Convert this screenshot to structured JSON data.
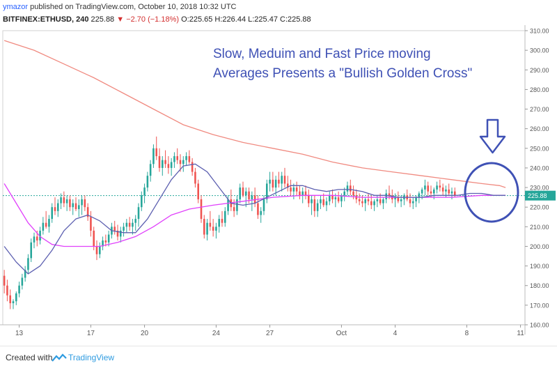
{
  "header": {
    "user": "ymazor",
    "published": " published on TradingView.com, October 10, 2018 10:32 UTC"
  },
  "symbol_bar": {
    "symbol": "BITFINEX:ETHUSD, 240",
    "last": "225.88",
    "change": "−2.70 (−1.18%)",
    "ohlc": "O:225.65 H:226.44 L:225.47 C:225.88"
  },
  "annotation": {
    "line1": "Slow, Meduim and Fast Price moving",
    "line2": "Averages Presents a \"Bullish Golden Cross\""
  },
  "footer": {
    "created_with": "Created with",
    "brand": "TradingView"
  },
  "colors": {
    "up": "#26a69a",
    "down": "#ef5350",
    "slow_ma": "#f08a80",
    "medium_ma": "#e040fb",
    "fast_ma": "#5c5fb0",
    "annotation": "#3f51b5"
  },
  "chart_data": {
    "type": "candlestick",
    "y_axis": {
      "min": 160,
      "max": 310,
      "step": 10,
      "side": "right",
      "ticks": [
        "310.00",
        "300.00",
        "290.00",
        "280.00",
        "270.00",
        "260.00",
        "250.00",
        "240.00",
        "230.00",
        "220.00",
        "210.00",
        "200.00",
        "190.00",
        "180.00",
        "170.00",
        "160.00"
      ]
    },
    "x_axis": {
      "ticks": [
        {
          "label": "13",
          "bar": 5
        },
        {
          "label": "17",
          "bar": 29
        },
        {
          "label": "20",
          "bar": 47
        },
        {
          "label": "24",
          "bar": 71
        },
        {
          "label": "27",
          "bar": 89
        },
        {
          "label": "Oct",
          "bar": 113
        },
        {
          "label": "4",
          "bar": 131
        },
        {
          "label": "8",
          "bar": 155
        },
        {
          "label": "11",
          "bar": 173
        }
      ]
    },
    "bars_total": 175,
    "current_price": 225.88,
    "price_label": "225.88",
    "candles": [
      [
        185,
        188,
        176,
        180
      ],
      [
        180,
        183,
        172,
        175
      ],
      [
        175,
        178,
        168,
        171
      ],
      [
        171,
        173,
        168,
        172
      ],
      [
        172,
        177,
        170,
        176
      ],
      [
        176,
        182,
        174,
        180
      ],
      [
        180,
        186,
        178,
        184
      ],
      [
        184,
        190,
        182,
        188
      ],
      [
        188,
        196,
        186,
        194
      ],
      [
        194,
        204,
        192,
        202
      ],
      [
        202,
        207,
        199,
        205
      ],
      [
        205,
        208,
        200,
        203
      ],
      [
        203,
        210,
        201,
        208
      ],
      [
        208,
        215,
        206,
        212
      ],
      [
        212,
        218,
        209,
        210
      ],
      [
        210,
        216,
        207,
        214
      ],
      [
        214,
        222,
        212,
        220
      ],
      [
        220,
        225,
        216,
        218
      ],
      [
        218,
        224,
        215,
        222
      ],
      [
        222,
        227,
        219,
        225
      ],
      [
        225,
        228,
        220,
        222
      ],
      [
        222,
        226,
        218,
        224
      ],
      [
        224,
        226,
        218,
        220
      ],
      [
        220,
        224,
        216,
        222
      ],
      [
        222,
        225,
        218,
        219
      ],
      [
        219,
        224,
        215,
        221
      ],
      [
        221,
        226,
        216,
        224
      ],
      [
        224,
        226,
        218,
        220
      ],
      [
        220,
        222,
        213,
        215
      ],
      [
        215,
        218,
        205,
        208
      ],
      [
        208,
        210,
        198,
        200
      ],
      [
        200,
        203,
        193,
        196
      ],
      [
        196,
        202,
        194,
        200
      ],
      [
        200,
        205,
        198,
        203
      ],
      [
        203,
        206,
        200,
        202
      ],
      [
        202,
        208,
        200,
        206
      ],
      [
        206,
        212,
        204,
        210
      ],
      [
        210,
        213,
        206,
        208
      ],
      [
        208,
        211,
        203,
        205
      ],
      [
        205,
        210,
        202,
        208
      ],
      [
        208,
        212,
        205,
        210
      ],
      [
        210,
        214,
        207,
        212
      ],
      [
        212,
        215,
        208,
        210
      ],
      [
        210,
        214,
        206,
        212
      ],
      [
        212,
        216,
        208,
        214
      ],
      [
        214,
        222,
        210,
        220
      ],
      [
        220,
        228,
        218,
        226
      ],
      [
        226,
        232,
        222,
        230
      ],
      [
        230,
        238,
        228,
        236
      ],
      [
        236,
        244,
        233,
        242
      ],
      [
        242,
        252,
        240,
        250
      ],
      [
        250,
        256,
        244,
        246
      ],
      [
        246,
        250,
        238,
        240
      ],
      [
        240,
        246,
        236,
        244
      ],
      [
        244,
        249,
        240,
        242
      ],
      [
        242,
        246,
        237,
        240
      ],
      [
        240,
        245,
        236,
        243
      ],
      [
        243,
        248,
        240,
        246
      ],
      [
        246,
        250,
        242,
        244
      ],
      [
        244,
        247,
        238,
        242
      ],
      [
        242,
        246,
        238,
        244
      ],
      [
        244,
        248,
        241,
        246
      ],
      [
        246,
        249,
        242,
        243
      ],
      [
        243,
        245,
        236,
        238
      ],
      [
        238,
        240,
        230,
        232
      ],
      [
        232,
        234,
        222,
        224
      ],
      [
        224,
        226,
        212,
        214
      ],
      [
        214,
        216,
        204,
        206
      ],
      [
        206,
        214,
        203,
        212
      ],
      [
        212,
        218,
        208,
        210
      ],
      [
        210,
        214,
        205,
        208
      ],
      [
        208,
        212,
        204,
        210
      ],
      [
        210,
        216,
        207,
        214
      ],
      [
        214,
        218,
        210,
        212
      ],
      [
        212,
        220,
        210,
        218
      ],
      [
        218,
        226,
        216,
        224
      ],
      [
        224,
        229,
        218,
        220
      ],
      [
        220,
        224,
        215,
        218
      ],
      [
        218,
        226,
        216,
        224
      ],
      [
        224,
        232,
        222,
        230
      ],
      [
        230,
        233,
        225,
        226
      ],
      [
        226,
        230,
        220,
        228
      ],
      [
        228,
        230,
        222,
        224
      ],
      [
        224,
        228,
        218,
        226
      ],
      [
        226,
        230,
        220,
        222
      ],
      [
        222,
        226,
        214,
        216
      ],
      [
        216,
        220,
        212,
        218
      ],
      [
        218,
        226,
        216,
        224
      ],
      [
        224,
        234,
        222,
        232
      ],
      [
        232,
        238,
        228,
        234
      ],
      [
        234,
        238,
        228,
        230
      ],
      [
        230,
        236,
        226,
        234
      ],
      [
        234,
        238,
        230,
        232
      ],
      [
        232,
        238,
        228,
        236
      ],
      [
        236,
        240,
        230,
        232
      ],
      [
        232,
        236,
        228,
        230
      ],
      [
        230,
        234,
        226,
        228
      ],
      [
        228,
        232,
        224,
        230
      ],
      [
        230,
        233,
        226,
        228
      ],
      [
        228,
        231,
        224,
        226
      ],
      [
        226,
        230,
        222,
        228
      ],
      [
        228,
        231,
        224,
        226
      ],
      [
        226,
        229,
        220,
        222
      ],
      [
        222,
        226,
        216,
        224
      ],
      [
        224,
        226,
        215,
        218
      ],
      [
        218,
        224,
        215,
        222
      ],
      [
        222,
        226,
        219,
        224
      ],
      [
        224,
        227,
        220,
        221
      ],
      [
        221,
        225,
        218,
        223
      ],
      [
        223,
        228,
        221,
        226
      ],
      [
        226,
        229,
        222,
        224
      ],
      [
        224,
        227,
        220,
        225
      ],
      [
        225,
        228,
        222,
        223
      ],
      [
        223,
        227,
        220,
        226
      ],
      [
        226,
        230,
        223,
        228
      ],
      [
        228,
        233,
        226,
        231
      ],
      [
        231,
        234,
        226,
        228
      ],
      [
        228,
        231,
        224,
        226
      ],
      [
        226,
        229,
        222,
        224
      ],
      [
        224,
        227,
        221,
        223
      ],
      [
        223,
        226,
        220,
        222
      ],
      [
        222,
        225,
        218,
        224
      ],
      [
        224,
        227,
        221,
        223
      ],
      [
        223,
        226,
        219,
        221
      ],
      [
        221,
        224,
        218,
        223
      ],
      [
        223,
        226,
        220,
        224
      ],
      [
        224,
        227,
        221,
        222
      ],
      [
        222,
        225,
        219,
        224
      ],
      [
        224,
        229,
        222,
        227
      ],
      [
        227,
        231,
        224,
        226
      ],
      [
        226,
        229,
        222,
        224
      ],
      [
        224,
        227,
        220,
        225
      ],
      [
        225,
        228,
        222,
        223
      ],
      [
        223,
        226,
        220,
        224
      ],
      [
        224,
        227,
        221,
        226
      ],
      [
        226,
        229,
        223,
        224
      ],
      [
        224,
        227,
        220,
        222
      ],
      [
        222,
        225,
        219,
        223
      ],
      [
        223,
        226,
        220,
        225
      ],
      [
        225,
        228,
        222,
        227
      ],
      [
        227,
        230,
        224,
        229
      ],
      [
        229,
        234,
        226,
        231
      ],
      [
        231,
        233,
        226,
        228
      ],
      [
        228,
        231,
        225,
        227
      ],
      [
        227,
        230,
        224,
        229
      ],
      [
        229,
        233,
        227,
        231
      ],
      [
        231,
        234,
        228,
        230
      ],
      [
        230,
        232,
        226,
        228
      ],
      [
        228,
        231,
        225,
        229
      ],
      [
        229,
        232,
        226,
        227
      ],
      [
        227,
        230,
        224,
        228
      ],
      [
        228,
        230,
        225,
        226
      ]
    ],
    "candles_x_start": 0,
    "ma_slow": [
      [
        0,
        305
      ],
      [
        10,
        300
      ],
      [
        20,
        293
      ],
      [
        30,
        286
      ],
      [
        40,
        278
      ],
      [
        50,
        270
      ],
      [
        60,
        262
      ],
      [
        70,
        257
      ],
      [
        80,
        253
      ],
      [
        90,
        250
      ],
      [
        100,
        247
      ],
      [
        110,
        243
      ],
      [
        120,
        240
      ],
      [
        130,
        238
      ],
      [
        140,
        236
      ],
      [
        150,
        234
      ],
      [
        160,
        232
      ],
      [
        166,
        231
      ],
      [
        168,
        230
      ]
    ],
    "ma_medium": [
      [
        0,
        232
      ],
      [
        4,
        222
      ],
      [
        8,
        212
      ],
      [
        12,
        205
      ],
      [
        16,
        201
      ],
      [
        20,
        200
      ],
      [
        26,
        200
      ],
      [
        32,
        200
      ],
      [
        38,
        202
      ],
      [
        44,
        205
      ],
      [
        50,
        210
      ],
      [
        56,
        216
      ],
      [
        62,
        219
      ],
      [
        70,
        221
      ],
      [
        80,
        223
      ],
      [
        90,
        225
      ],
      [
        100,
        226
      ],
      [
        110,
        226
      ],
      [
        120,
        225
      ],
      [
        130,
        225
      ],
      [
        140,
        225
      ],
      [
        150,
        225
      ],
      [
        160,
        226
      ],
      [
        168,
        226
      ]
    ],
    "ma_fast": [
      [
        0,
        200
      ],
      [
        4,
        192
      ],
      [
        8,
        186
      ],
      [
        12,
        190
      ],
      [
        16,
        198
      ],
      [
        20,
        208
      ],
      [
        24,
        214
      ],
      [
        28,
        216
      ],
      [
        32,
        213
      ],
      [
        36,
        208
      ],
      [
        40,
        207
      ],
      [
        44,
        207
      ],
      [
        48,
        214
      ],
      [
        52,
        224
      ],
      [
        56,
        234
      ],
      [
        60,
        241
      ],
      [
        64,
        242
      ],
      [
        68,
        238
      ],
      [
        72,
        230
      ],
      [
        76,
        222
      ],
      [
        80,
        221
      ],
      [
        84,
        222
      ],
      [
        88,
        225
      ],
      [
        92,
        228
      ],
      [
        96,
        231
      ],
      [
        100,
        231
      ],
      [
        104,
        229
      ],
      [
        108,
        228
      ],
      [
        112,
        229
      ],
      [
        116,
        229
      ],
      [
        120,
        228
      ],
      [
        124,
        226
      ],
      [
        128,
        226
      ],
      [
        132,
        225
      ],
      [
        136,
        225
      ],
      [
        140,
        225
      ],
      [
        144,
        226
      ],
      [
        148,
        226
      ],
      [
        152,
        226
      ],
      [
        156,
        227
      ],
      [
        160,
        227
      ],
      [
        164,
        226
      ],
      [
        168,
        226
      ]
    ]
  }
}
